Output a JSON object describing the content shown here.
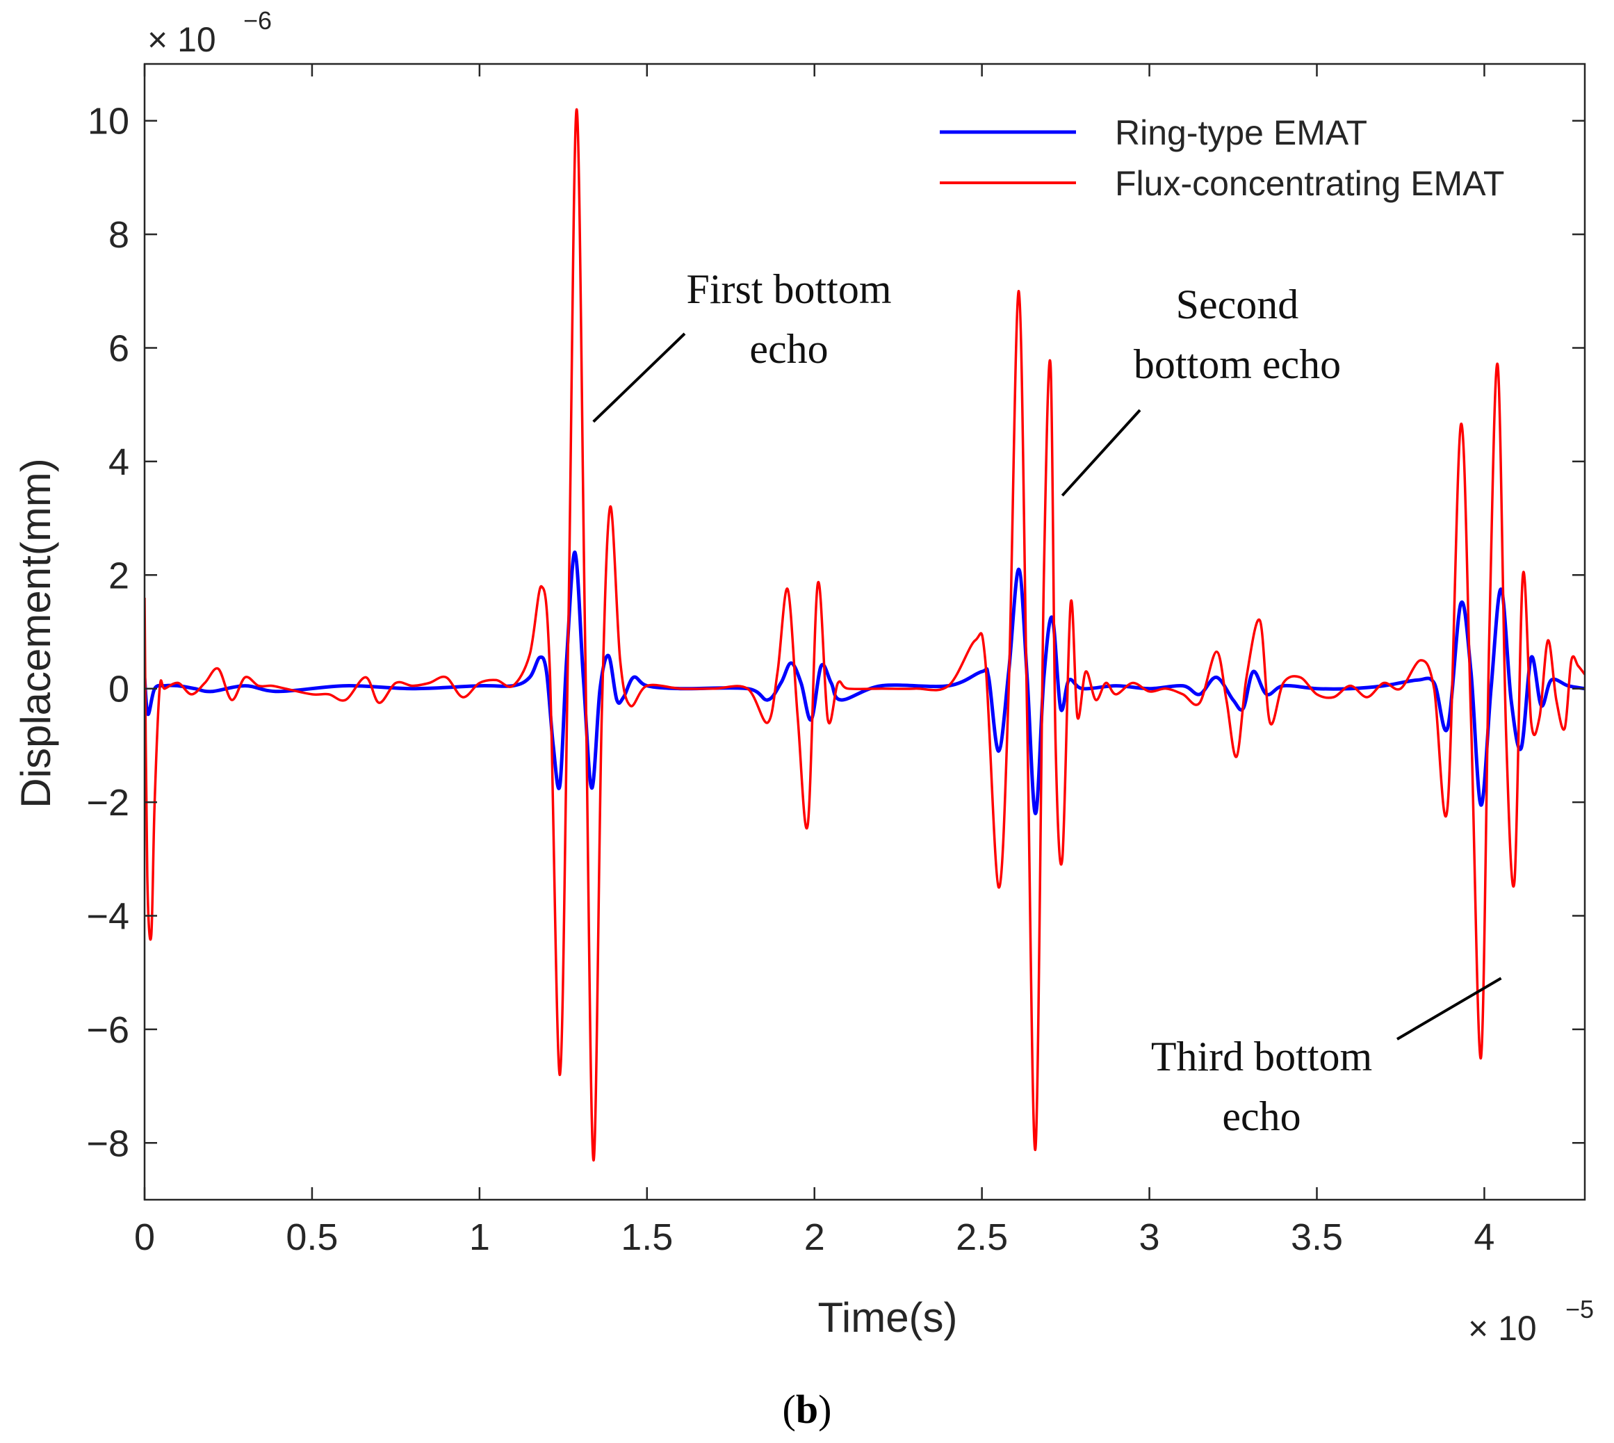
{
  "chart_data": {
    "type": "line",
    "xlabel": "Time(s)",
    "ylabel": "Displacement(mm)",
    "x_multiplier_label": "× 10",
    "x_multiplier_exp": "−5",
    "y_multiplier_label": "× 10",
    "y_multiplier_exp": "−6",
    "xlim": [
      0,
      4.3
    ],
    "ylim": [
      -9,
      11
    ],
    "x_ticks": [
      0,
      0.5,
      1,
      1.5,
      2,
      2.5,
      3,
      3.5,
      4
    ],
    "x_tick_labels": [
      "0",
      "0.5",
      "1",
      "1.5",
      "2",
      "2.5",
      "3",
      "3.5",
      "4"
    ],
    "y_ticks": [
      -8,
      -6,
      -4,
      -2,
      0,
      2,
      4,
      6,
      8,
      10
    ],
    "y_tick_labels": [
      "−8",
      "−6",
      "−4",
      "−2",
      "0",
      "2",
      "4",
      "6",
      "8",
      "10"
    ],
    "legend_position": "top-right",
    "series": [
      {
        "name": "Ring-type EMAT",
        "color": "#0000ff",
        "x": [
          0,
          0.01,
          0.03,
          0.06,
          0.1,
          0.15,
          0.2,
          0.3,
          0.4,
          0.6,
          0.8,
          1.0,
          1.1,
          1.15,
          1.18,
          1.2,
          1.22,
          1.24,
          1.26,
          1.285,
          1.31,
          1.335,
          1.36,
          1.385,
          1.41,
          1.43,
          1.46,
          1.5,
          1.6,
          1.8,
          1.86,
          1.9,
          1.93,
          1.96,
          1.99,
          2.02,
          2.05,
          2.08,
          2.2,
          2.4,
          2.5,
          2.52,
          2.55,
          2.58,
          2.61,
          2.635,
          2.66,
          2.685,
          2.71,
          2.735,
          2.76,
          2.8,
          2.9,
          3.0,
          3.1,
          3.15,
          3.2,
          3.25,
          3.28,
          3.31,
          3.35,
          3.4,
          3.5,
          3.6,
          3.7,
          3.8,
          3.85,
          3.89,
          3.93,
          3.96,
          3.99,
          4.02,
          4.05,
          4.08,
          4.11,
          4.14,
          4.17,
          4.2,
          4.25,
          4.3
        ],
        "y": [
          0.2,
          -0.45,
          0.0,
          0.05,
          0.05,
          0.0,
          -0.05,
          0.05,
          -0.05,
          0.05,
          0.0,
          0.05,
          0.05,
          0.2,
          0.55,
          0.3,
          -1.0,
          -1.7,
          0.5,
          2.4,
          0.2,
          -1.75,
          0.0,
          0.58,
          -0.2,
          -0.15,
          0.2,
          0.05,
          0.0,
          0.0,
          -0.2,
          0.1,
          0.45,
          0.1,
          -0.55,
          0.4,
          0.1,
          -0.2,
          0.05,
          0.05,
          0.3,
          0.2,
          -1.1,
          0.3,
          2.1,
          0.2,
          -2.2,
          0.2,
          1.25,
          -0.35,
          0.15,
          0.0,
          0.05,
          0.0,
          0.05,
          -0.1,
          0.2,
          -0.2,
          -0.35,
          0.3,
          -0.1,
          0.05,
          0.0,
          0.0,
          0.05,
          0.15,
          0.1,
          -0.7,
          1.5,
          0.3,
          -2.05,
          0.0,
          1.75,
          -0.2,
          -1.05,
          0.55,
          -0.3,
          0.15,
          0.05,
          0.0
        ]
      },
      {
        "name": "Flux-concentrating EMAT",
        "color": "#ff0000",
        "x": [
          0,
          0.008,
          0.02,
          0.03,
          0.045,
          0.06,
          0.1,
          0.14,
          0.18,
          0.22,
          0.26,
          0.3,
          0.34,
          0.38,
          0.42,
          0.5,
          0.55,
          0.6,
          0.66,
          0.7,
          0.75,
          0.8,
          0.85,
          0.9,
          0.95,
          1.0,
          1.05,
          1.1,
          1.15,
          1.185,
          1.21,
          1.24,
          1.265,
          1.29,
          1.315,
          1.34,
          1.365,
          1.39,
          1.42,
          1.45,
          1.5,
          1.6,
          1.7,
          1.8,
          1.86,
          1.89,
          1.92,
          1.95,
          1.98,
          2.01,
          2.04,
          2.07,
          2.1,
          2.2,
          2.3,
          2.4,
          2.48,
          2.51,
          2.55,
          2.58,
          2.61,
          2.635,
          2.66,
          2.685,
          2.705,
          2.72,
          2.74,
          2.765,
          2.785,
          2.81,
          2.84,
          2.87,
          2.9,
          2.95,
          3.0,
          3.05,
          3.1,
          3.15,
          3.2,
          3.23,
          3.26,
          3.29,
          3.33,
          3.36,
          3.4,
          3.45,
          3.5,
          3.55,
          3.6,
          3.65,
          3.7,
          3.75,
          3.81,
          3.85,
          3.89,
          3.93,
          3.96,
          3.99,
          4.015,
          4.04,
          4.065,
          4.09,
          4.115,
          4.14,
          4.165,
          4.19,
          4.215,
          4.24,
          4.26,
          4.28,
          4.3
        ],
        "y": [
          1.6,
          -3.3,
          -4.35,
          -2.0,
          0.0,
          0.0,
          0.1,
          -0.1,
          0.1,
          0.35,
          -0.2,
          0.2,
          0.05,
          0.05,
          0.0,
          -0.1,
          -0.1,
          -0.2,
          0.2,
          -0.25,
          0.1,
          0.05,
          0.1,
          0.2,
          -0.15,
          0.1,
          0.15,
          0.05,
          0.6,
          1.8,
          0.3,
          -6.8,
          1.0,
          10.2,
          1.0,
          -8.3,
          -0.5,
          3.2,
          0.5,
          -0.3,
          0.05,
          0.0,
          0.0,
          0.0,
          -0.6,
          0.3,
          1.75,
          -0.5,
          -2.4,
          1.85,
          -0.55,
          0.1,
          0.0,
          0.0,
          0.0,
          0.05,
          0.85,
          0.5,
          -3.5,
          0.0,
          7.0,
          -0.5,
          -8.1,
          2.0,
          5.7,
          -1.0,
          -3.0,
          1.5,
          -0.5,
          0.3,
          -0.2,
          0.1,
          -0.1,
          0.1,
          -0.05,
          0.0,
          -0.1,
          -0.25,
          0.65,
          -0.2,
          -1.2,
          0.2,
          1.2,
          -0.6,
          0.1,
          0.2,
          -0.1,
          -0.15,
          0.05,
          -0.15,
          0.1,
          0.0,
          0.5,
          0.0,
          -2.1,
          4.65,
          -0.5,
          -6.5,
          1.0,
          5.7,
          -0.8,
          -3.4,
          2.0,
          -0.6,
          -0.5,
          0.85,
          -0.2,
          -0.7,
          0.5,
          0.4,
          0.25
        ]
      }
    ],
    "annotations": [
      {
        "lines": [
          "First bottom",
          "echo"
        ],
        "target_x": 1.34,
        "target_y": 4.7
      },
      {
        "lines": [
          "Second",
          "bottom echo"
        ],
        "target_x": 2.74,
        "target_y": 3.4
      },
      {
        "lines": [
          "Third bottom",
          "echo"
        ],
        "target_x": 4.05,
        "target_y": -5.1
      }
    ],
    "caption_open": "(",
    "caption_letter": "b",
    "caption_close": ")"
  }
}
